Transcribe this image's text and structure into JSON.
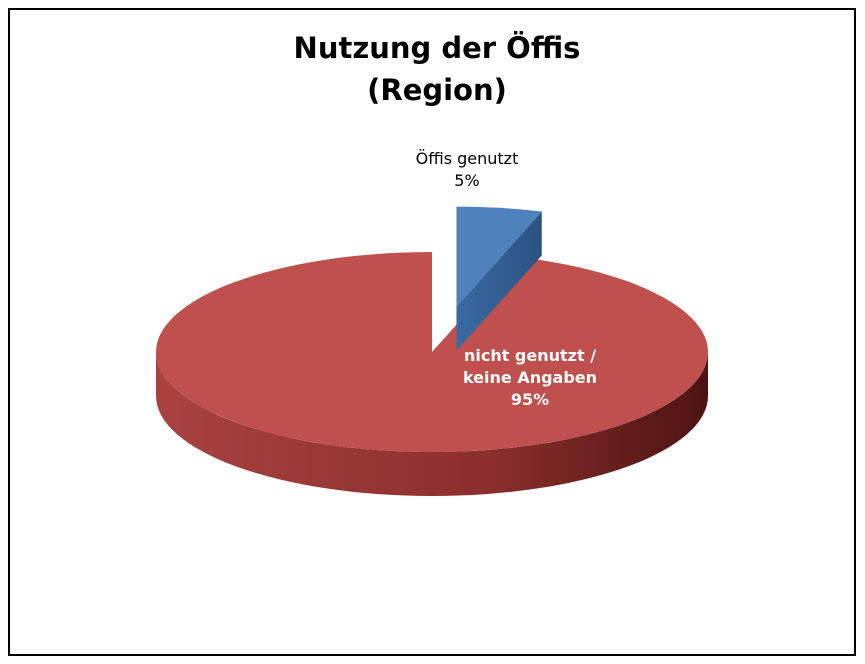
{
  "chart_data": {
    "type": "pie3d",
    "title": [
      "Nutzung der Öffis",
      "(Region)"
    ],
    "categories": [
      "Öffis genutzt",
      "nicht genutzt / keine Angaben"
    ],
    "values": [
      5,
      95
    ],
    "value_labels": [
      "5%",
      "95%"
    ],
    "colors": [
      "#4f81bd",
      "#c0504d"
    ],
    "exploded": [
      0
    ]
  }
}
